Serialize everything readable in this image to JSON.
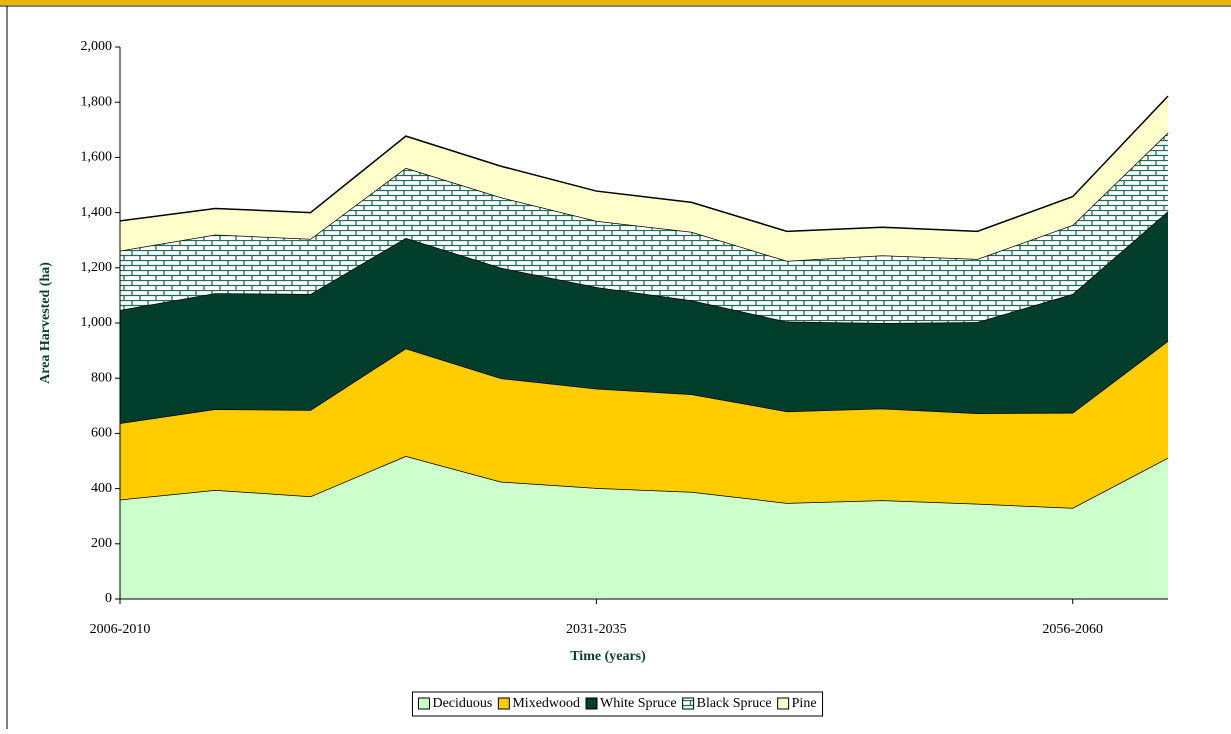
{
  "chart_data": {
    "type": "stacked-area",
    "x_label": "Time (years)",
    "y_label": "Area Harvested (ha)",
    "categories": [
      "2006-2010",
      null,
      null,
      null,
      null,
      "2031-2035",
      null,
      null,
      null,
      null,
      "2056-2060",
      null
    ],
    "series": [
      {
        "name": "Deciduous",
        "color": "#ccffcc",
        "values": [
          360,
          395,
          372,
          518,
          425,
          402,
          388,
          348,
          358,
          345,
          330,
          512
        ]
      },
      {
        "name": "Mixedwood",
        "color": "#ffcc00",
        "values": [
          277,
          293,
          313,
          390,
          375,
          360,
          354,
          332,
          332,
          328,
          345,
          423
        ]
      },
      {
        "name": "White Spruce",
        "color": "#003d2b",
        "values": [
          410,
          420,
          420,
          400,
          400,
          368,
          340,
          325,
          310,
          330,
          430,
          470
        ]
      },
      {
        "name": "Black Spruce",
        "color": "#1f6b5a",
        "pattern": "brick",
        "values": [
          215,
          212,
          200,
          254,
          255,
          240,
          248,
          220,
          245,
          229,
          250,
          285
        ]
      },
      {
        "name": "Pine",
        "color": "#ffffcc",
        "values": [
          108,
          95,
          95,
          115,
          113,
          108,
          107,
          107,
          102,
          100,
          103,
          132
        ]
      }
    ],
    "ylim": [
      0,
      2000
    ],
    "yticks": [
      0,
      200,
      400,
      600,
      800,
      {
        "value": 1000,
        "label": "1,000"
      },
      {
        "value": 1200,
        "label": "1,200"
      },
      {
        "value": 1400,
        "label": "1,400"
      },
      {
        "value": 1600,
        "label": "1,600"
      },
      {
        "value": 1800,
        "label": "1,800"
      },
      {
        "value": 2000,
        "label": "2,000"
      }
    ],
    "legend": "bottom"
  }
}
